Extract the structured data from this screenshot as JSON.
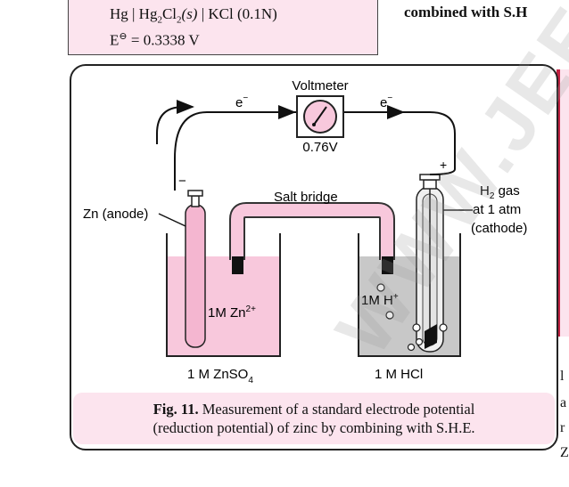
{
  "formula": {
    "line1_parts": [
      "Hg | Hg",
      "2",
      "Cl",
      "2",
      "(s)",
      " | KCl (0.1N)"
    ],
    "line2_prefix": "E",
    "line2_sup": "⊖",
    "line2_value": " = 0.3338 V"
  },
  "side_text": {
    "top": "combined with S.H",
    "bottom_lines": [
      "l",
      "a",
      "r",
      "Z"
    ]
  },
  "diagram": {
    "voltmeter_label": "Voltmeter",
    "voltage_reading": "0.76V",
    "electron_left": "e",
    "electron_right": "e",
    "electron_sup": "−",
    "minus_sign": "−",
    "plus_sign": "+",
    "zn_label": "Zn (anode)",
    "salt_bridge_label": "Salt bridge",
    "h2_label_main": "H",
    "h2_label_sub": "2",
    "h2_label_rest": " gas",
    "h2_line2": "at 1 atm",
    "h2_line3": "(cathode)",
    "zn_ion_label": "1M Zn",
    "zn_ion_sup": "2+",
    "h_ion_label": "1M H",
    "h_ion_sup": "+",
    "left_solution": "1 M ZnSO",
    "left_solution_sub": "4",
    "right_solution": "1 M HCl"
  },
  "caption": {
    "bold": "Fig. 11.",
    "text": " Measurement of a standard electrode potential",
    "line2": "(reduction potential) of zinc by combining with S.H.E."
  },
  "watermark": "WWW.JEE",
  "colors": {
    "pink": "#f8c8dc",
    "light_pink": "#fce4ee",
    "gray_solution": "#c8c8c8",
    "black": "#111111"
  }
}
